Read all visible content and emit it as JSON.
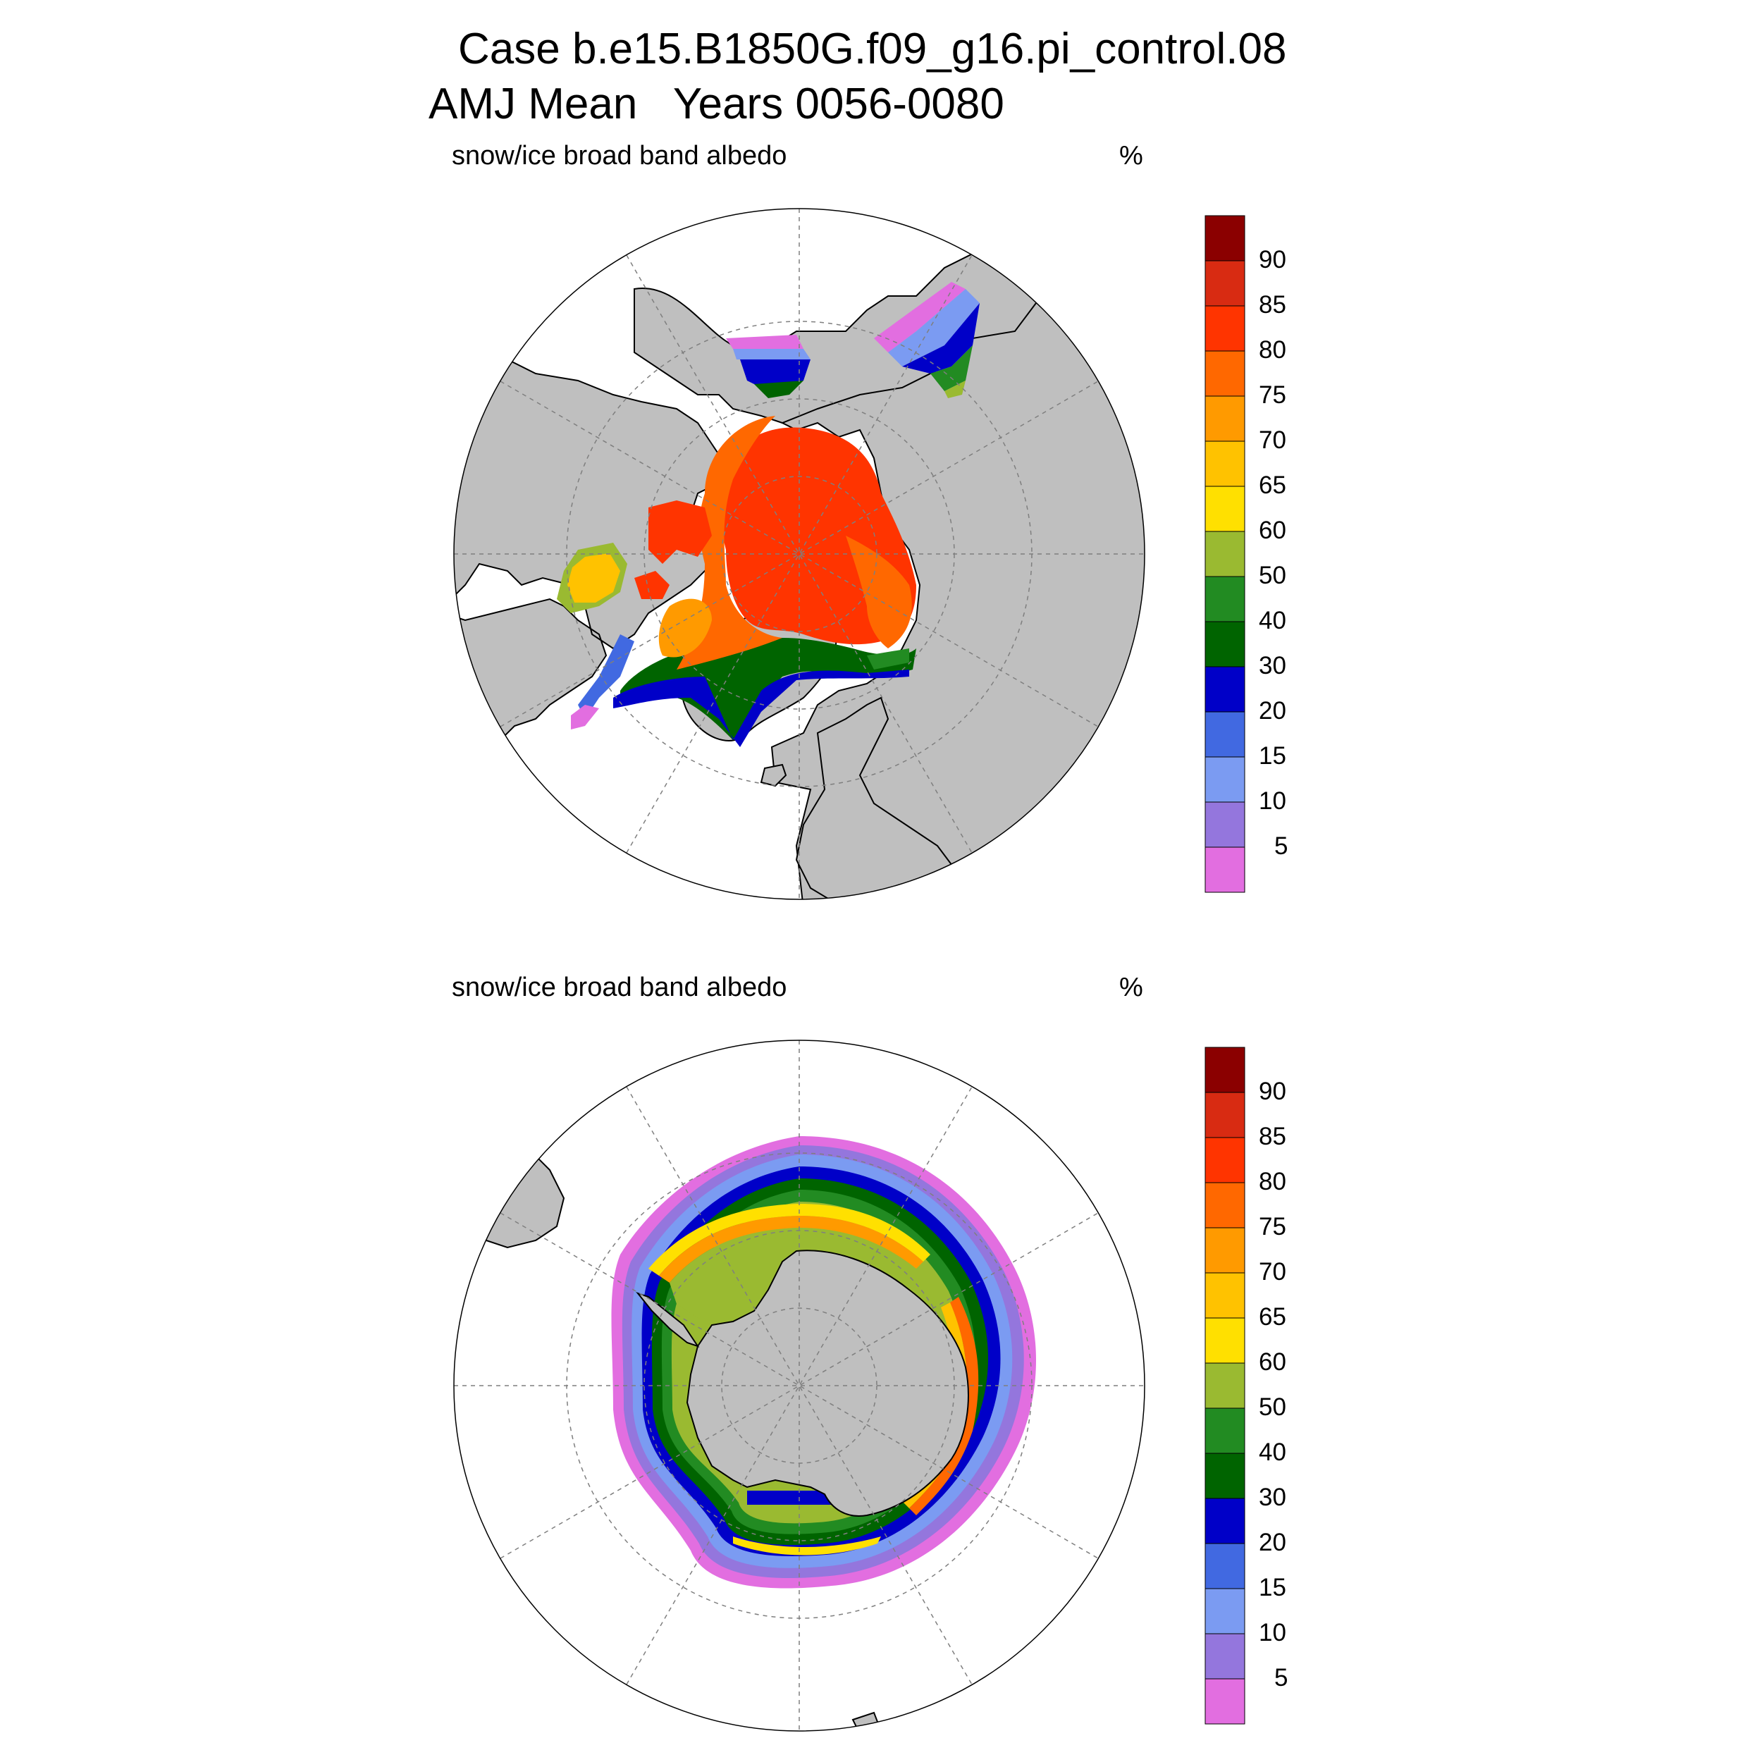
{
  "title": {
    "line1": "Case b.e15.B1850G.f09_g16.pi_control.08",
    "line2": "AMJ Mean   Years 0056-0080"
  },
  "panels": [
    {
      "id": "north",
      "variable_label": "snow/ice broad band albedo",
      "units_label": "%"
    },
    {
      "id": "south",
      "variable_label": "snow/ice broad band albedo",
      "units_label": "%"
    }
  ],
  "colorbar": {
    "levels": [
      "5",
      "10",
      "15",
      "20",
      "30",
      "40",
      "50",
      "60",
      "65",
      "70",
      "75",
      "80",
      "85",
      "90"
    ],
    "colors": [
      "#e26ee0",
      "#9476dd",
      "#7b9bf2",
      "#4169e1",
      "#0000c8",
      "#006400",
      "#228b22",
      "#9aba31",
      "#ffe000",
      "#ffc200",
      "#ff9a00",
      "#ff6800",
      "#ff3400",
      "#d82b12",
      "#8b0000"
    ]
  },
  "colors": {
    "land": "#bfbfbf",
    "ocean": "#ffffff",
    "grid": "#7f7f7f"
  }
}
